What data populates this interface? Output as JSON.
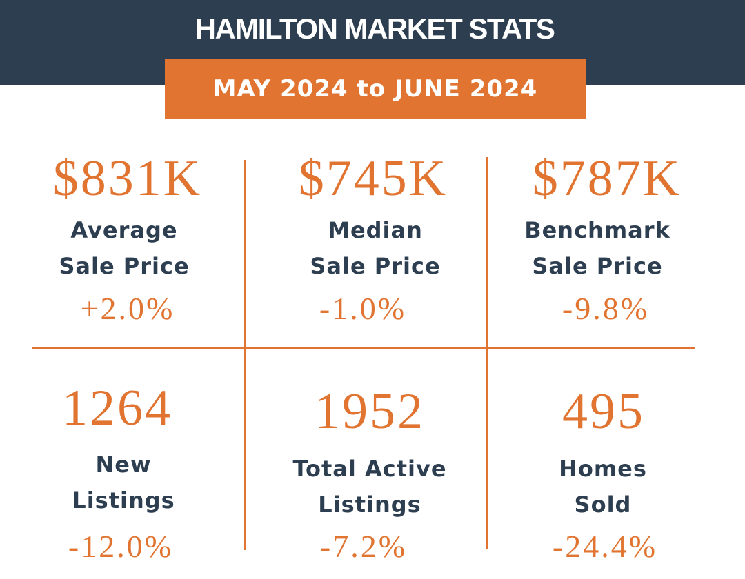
{
  "header": {
    "title": "HAMILTON MARKET STATS",
    "date_range": "MAY 2024 to JUNE 2024"
  },
  "colors": {
    "navy": "#2d3e50",
    "orange": "#e07430",
    "background": "#ffffff"
  },
  "stats": [
    {
      "value": "$831K",
      "label_line1": "Average",
      "label_line2": "Sale Price",
      "change": "+2.0%"
    },
    {
      "value": "$745K",
      "label_line1": "Median",
      "label_line2": "Sale Price",
      "change": "-1.0%"
    },
    {
      "value": "$787K",
      "label_line1": "Benchmark",
      "label_line2": "Sale Price",
      "change": "-9.8%"
    },
    {
      "value": "1264",
      "label_line1": "New",
      "label_line2": "Listings",
      "change": "-12.0%"
    },
    {
      "value": "1952",
      "label_line1": "Total Active",
      "label_line2": "Listings",
      "change": "-7.2%"
    },
    {
      "value": "495",
      "label_line1": "Homes",
      "label_line2": "Sold",
      "change": "-24.4%"
    }
  ]
}
